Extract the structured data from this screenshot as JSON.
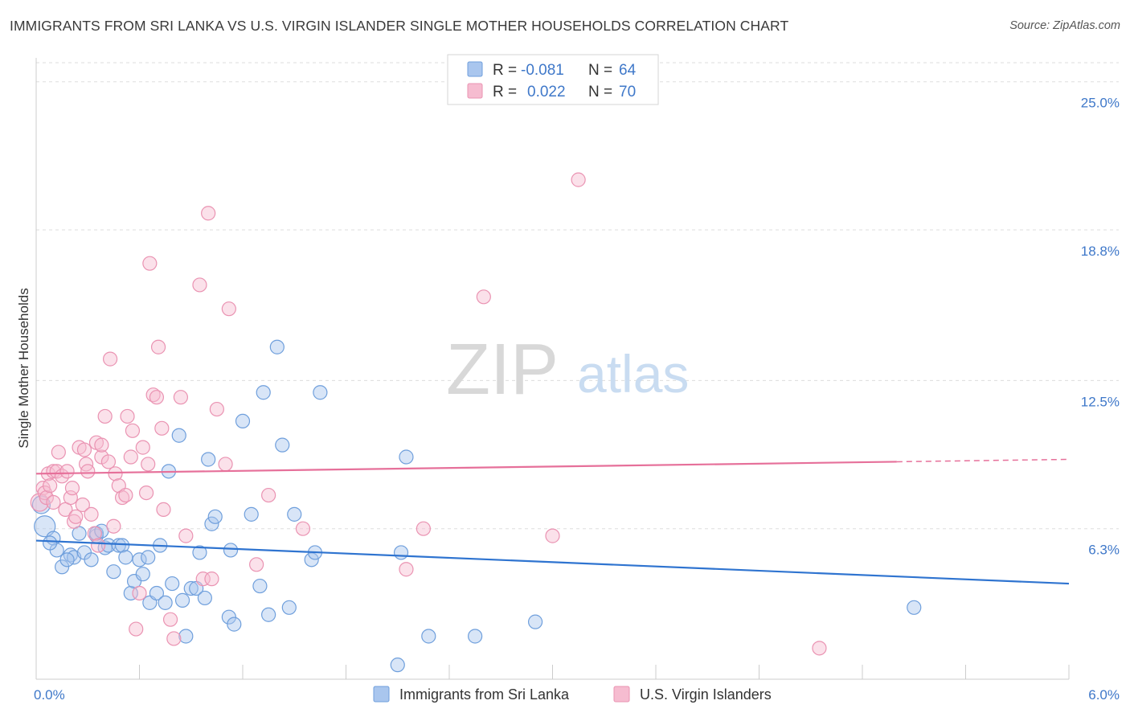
{
  "title": "IMMIGRANTS FROM SRI LANKA VS U.S. VIRGIN ISLANDER SINGLE MOTHER HOUSEHOLDS CORRELATION CHART",
  "source": "Source: ZipAtlas.com",
  "watermark": {
    "zip": "ZIP",
    "atlas": "atlas"
  },
  "colors": {
    "blue_fill": "#a9c6ee",
    "blue_stroke": "#6f9fdc",
    "blue_line": "#2f74d0",
    "pink_fill": "#f6bcd0",
    "pink_stroke": "#ea93b2",
    "pink_line": "#e6709a",
    "value_text": "#3f78c9",
    "grid": "#dddddd"
  },
  "legend_top": {
    "rows": [
      {
        "r_label": "R =",
        "r_value": "-0.081",
        "n_label": "N =",
        "n_value": "64"
      },
      {
        "r_label": "R =",
        "r_value": "0.022",
        "n_label": "N =",
        "n_value": "70"
      }
    ]
  },
  "chart_data": {
    "type": "scatter",
    "title": "IMMIGRANTS FROM SRI LANKA VS U.S. VIRGIN ISLANDER SINGLE MOTHER HOUSEHOLDS CORRELATION CHART",
    "xlabel": "",
    "ylabel": "Single Mother Households",
    "xlim": [
      0,
      6.0
    ],
    "ylim": [
      0,
      26.0
    ],
    "x_tick_labels": [
      "0.0%",
      "6.0%"
    ],
    "y_ticks": [
      6.3,
      12.5,
      18.8,
      25.0
    ],
    "y_tick_labels": [
      "6.3%",
      "12.5%",
      "18.8%",
      "25.0%"
    ],
    "grid": true,
    "legend_position": "bottom",
    "series": [
      {
        "name": "Immigrants from Sri Lanka",
        "color": "#a9c6ee",
        "trend": {
          "x": [
            0.0,
            6.0
          ],
          "y": [
            5.8,
            4.0
          ]
        },
        "points": [
          {
            "x": 0.03,
            "y": 7.3,
            "s": 2
          },
          {
            "x": 0.05,
            "y": 6.4,
            "s": 3
          },
          {
            "x": 0.1,
            "y": 5.9,
            "s": 1
          },
          {
            "x": 0.12,
            "y": 5.4,
            "s": 1
          },
          {
            "x": 0.15,
            "y": 4.7,
            "s": 1
          },
          {
            "x": 0.2,
            "y": 5.2,
            "s": 1
          },
          {
            "x": 0.22,
            "y": 5.1,
            "s": 1
          },
          {
            "x": 0.25,
            "y": 6.1,
            "s": 1
          },
          {
            "x": 0.28,
            "y": 5.3,
            "s": 1
          },
          {
            "x": 0.32,
            "y": 5.0,
            "s": 1
          },
          {
            "x": 0.35,
            "y": 6.0,
            "s": 1
          },
          {
            "x": 0.35,
            "y": 6.1,
            "s": 1
          },
          {
            "x": 0.38,
            "y": 6.2,
            "s": 1
          },
          {
            "x": 0.4,
            "y": 5.5,
            "s": 1
          },
          {
            "x": 0.42,
            "y": 5.6,
            "s": 1
          },
          {
            "x": 0.45,
            "y": 4.5,
            "s": 1
          },
          {
            "x": 0.48,
            "y": 5.6,
            "s": 1
          },
          {
            "x": 0.5,
            "y": 5.6,
            "s": 1
          },
          {
            "x": 0.52,
            "y": 5.1,
            "s": 1
          },
          {
            "x": 0.55,
            "y": 3.6,
            "s": 1
          },
          {
            "x": 0.57,
            "y": 4.1,
            "s": 1
          },
          {
            "x": 0.6,
            "y": 5.0,
            "s": 1
          },
          {
            "x": 0.62,
            "y": 4.4,
            "s": 1
          },
          {
            "x": 0.65,
            "y": 5.1,
            "s": 1
          },
          {
            "x": 0.66,
            "y": 3.2,
            "s": 1
          },
          {
            "x": 0.7,
            "y": 3.6,
            "s": 1
          },
          {
            "x": 0.72,
            "y": 5.6,
            "s": 1
          },
          {
            "x": 0.75,
            "y": 3.2,
            "s": 1
          },
          {
            "x": 0.77,
            "y": 8.7,
            "s": 1
          },
          {
            "x": 0.79,
            "y": 4.0,
            "s": 1
          },
          {
            "x": 0.83,
            "y": 10.2,
            "s": 1
          },
          {
            "x": 0.85,
            "y": 3.3,
            "s": 1
          },
          {
            "x": 0.87,
            "y": 1.8,
            "s": 1
          },
          {
            "x": 0.9,
            "y": 3.8,
            "s": 1
          },
          {
            "x": 0.93,
            "y": 3.8,
            "s": 1
          },
          {
            "x": 0.95,
            "y": 5.3,
            "s": 1
          },
          {
            "x": 0.98,
            "y": 3.4,
            "s": 1
          },
          {
            "x": 1.0,
            "y": 9.2,
            "s": 1
          },
          {
            "x": 1.02,
            "y": 6.5,
            "s": 1
          },
          {
            "x": 1.04,
            "y": 6.8,
            "s": 1
          },
          {
            "x": 1.12,
            "y": 2.6,
            "s": 1
          },
          {
            "x": 1.13,
            "y": 5.4,
            "s": 1
          },
          {
            "x": 1.15,
            "y": 2.3,
            "s": 1
          },
          {
            "x": 1.2,
            "y": 10.8,
            "s": 1
          },
          {
            "x": 1.25,
            "y": 6.9,
            "s": 1
          },
          {
            "x": 1.3,
            "y": 3.9,
            "s": 1
          },
          {
            "x": 1.32,
            "y": 12.0,
            "s": 1
          },
          {
            "x": 1.35,
            "y": 2.7,
            "s": 1
          },
          {
            "x": 1.4,
            "y": 13.9,
            "s": 1
          },
          {
            "x": 1.43,
            "y": 9.8,
            "s": 1
          },
          {
            "x": 1.47,
            "y": 3.0,
            "s": 1
          },
          {
            "x": 1.5,
            "y": 6.9,
            "s": 1
          },
          {
            "x": 1.6,
            "y": 5.0,
            "s": 1
          },
          {
            "x": 1.62,
            "y": 5.3,
            "s": 1
          },
          {
            "x": 1.65,
            "y": 12.0,
            "s": 1
          },
          {
            "x": 2.1,
            "y": 0.6,
            "s": 1
          },
          {
            "x": 2.12,
            "y": 5.3,
            "s": 1
          },
          {
            "x": 2.15,
            "y": 9.3,
            "s": 1
          },
          {
            "x": 2.28,
            "y": 1.8,
            "s": 1
          },
          {
            "x": 2.55,
            "y": 1.8,
            "s": 1
          },
          {
            "x": 2.9,
            "y": 2.4,
            "s": 1
          },
          {
            "x": 5.1,
            "y": 3.0,
            "s": 1
          },
          {
            "x": 0.08,
            "y": 5.7,
            "s": 1
          },
          {
            "x": 0.18,
            "y": 5.0,
            "s": 1
          }
        ]
      },
      {
        "name": "U.S. Virgin Islanders",
        "color": "#f6bcd0",
        "trend": {
          "x": [
            0.0,
            5.0
          ],
          "y": [
            8.6,
            9.1
          ]
        },
        "trend_dashed": {
          "x": [
            5.0,
            6.0
          ],
          "y": [
            9.1,
            9.2
          ]
        },
        "points": [
          {
            "x": 0.02,
            "y": 7.4,
            "s": 2
          },
          {
            "x": 0.04,
            "y": 8.0,
            "s": 1
          },
          {
            "x": 0.05,
            "y": 7.8,
            "s": 1
          },
          {
            "x": 0.06,
            "y": 7.6,
            "s": 1
          },
          {
            "x": 0.07,
            "y": 8.6,
            "s": 1
          },
          {
            "x": 0.08,
            "y": 8.1,
            "s": 1
          },
          {
            "x": 0.1,
            "y": 7.4,
            "s": 1
          },
          {
            "x": 0.1,
            "y": 8.7,
            "s": 1
          },
          {
            "x": 0.12,
            "y": 8.7,
            "s": 1
          },
          {
            "x": 0.13,
            "y": 9.5,
            "s": 1
          },
          {
            "x": 0.15,
            "y": 8.5,
            "s": 1
          },
          {
            "x": 0.17,
            "y": 7.1,
            "s": 1
          },
          {
            "x": 0.18,
            "y": 8.7,
            "s": 1
          },
          {
            "x": 0.2,
            "y": 7.6,
            "s": 1
          },
          {
            "x": 0.21,
            "y": 8.0,
            "s": 1
          },
          {
            "x": 0.22,
            "y": 6.6,
            "s": 1
          },
          {
            "x": 0.23,
            "y": 6.8,
            "s": 1
          },
          {
            "x": 0.25,
            "y": 9.7,
            "s": 1
          },
          {
            "x": 0.27,
            "y": 7.3,
            "s": 1
          },
          {
            "x": 0.28,
            "y": 9.6,
            "s": 1
          },
          {
            "x": 0.29,
            "y": 9.0,
            "s": 1
          },
          {
            "x": 0.3,
            "y": 8.7,
            "s": 1
          },
          {
            "x": 0.32,
            "y": 6.9,
            "s": 1
          },
          {
            "x": 0.34,
            "y": 6.1,
            "s": 1
          },
          {
            "x": 0.35,
            "y": 9.9,
            "s": 1
          },
          {
            "x": 0.36,
            "y": 5.6,
            "s": 1
          },
          {
            "x": 0.38,
            "y": 9.3,
            "s": 1
          },
          {
            "x": 0.38,
            "y": 9.8,
            "s": 1
          },
          {
            "x": 0.4,
            "y": 11.0,
            "s": 1
          },
          {
            "x": 0.42,
            "y": 9.1,
            "s": 1
          },
          {
            "x": 0.43,
            "y": 13.4,
            "s": 1
          },
          {
            "x": 0.45,
            "y": 6.4,
            "s": 1
          },
          {
            "x": 0.46,
            "y": 8.6,
            "s": 1
          },
          {
            "x": 0.48,
            "y": 8.1,
            "s": 1
          },
          {
            "x": 0.5,
            "y": 7.6,
            "s": 1
          },
          {
            "x": 0.52,
            "y": 7.7,
            "s": 1
          },
          {
            "x": 0.53,
            "y": 11.0,
            "s": 1
          },
          {
            "x": 0.55,
            "y": 9.3,
            "s": 1
          },
          {
            "x": 0.56,
            "y": 10.4,
            "s": 1
          },
          {
            "x": 0.58,
            "y": 2.1,
            "s": 1
          },
          {
            "x": 0.6,
            "y": 3.6,
            "s": 1
          },
          {
            "x": 0.62,
            "y": 9.7,
            "s": 1
          },
          {
            "x": 0.64,
            "y": 7.8,
            "s": 1
          },
          {
            "x": 0.65,
            "y": 9.0,
            "s": 1
          },
          {
            "x": 0.66,
            "y": 17.4,
            "s": 1
          },
          {
            "x": 0.68,
            "y": 11.9,
            "s": 1
          },
          {
            "x": 0.7,
            "y": 11.8,
            "s": 1
          },
          {
            "x": 0.71,
            "y": 13.9,
            "s": 1
          },
          {
            "x": 0.73,
            "y": 10.5,
            "s": 1
          },
          {
            "x": 0.74,
            "y": 7.1,
            "s": 1
          },
          {
            "x": 0.78,
            "y": 2.5,
            "s": 1
          },
          {
            "x": 0.8,
            "y": 1.7,
            "s": 1
          },
          {
            "x": 0.84,
            "y": 11.8,
            "s": 1
          },
          {
            "x": 0.87,
            "y": 6.0,
            "s": 1
          },
          {
            "x": 0.95,
            "y": 16.5,
            "s": 1
          },
          {
            "x": 0.97,
            "y": 4.2,
            "s": 1
          },
          {
            "x": 1.0,
            "y": 19.5,
            "s": 1
          },
          {
            "x": 1.02,
            "y": 4.2,
            "s": 1
          },
          {
            "x": 1.05,
            "y": 11.3,
            "s": 1
          },
          {
            "x": 1.1,
            "y": 9.0,
            "s": 1
          },
          {
            "x": 1.12,
            "y": 15.5,
            "s": 1
          },
          {
            "x": 1.28,
            "y": 4.8,
            "s": 1
          },
          {
            "x": 1.35,
            "y": 7.7,
            "s": 1
          },
          {
            "x": 1.55,
            "y": 6.3,
            "s": 1
          },
          {
            "x": 2.15,
            "y": 4.6,
            "s": 1
          },
          {
            "x": 2.25,
            "y": 6.3,
            "s": 1
          },
          {
            "x": 2.6,
            "y": 16.0,
            "s": 1
          },
          {
            "x": 3.0,
            "y": 6.0,
            "s": 1
          },
          {
            "x": 3.15,
            "y": 20.9,
            "s": 1
          },
          {
            "x": 4.55,
            "y": 1.3,
            "s": 1
          }
        ]
      }
    ]
  }
}
